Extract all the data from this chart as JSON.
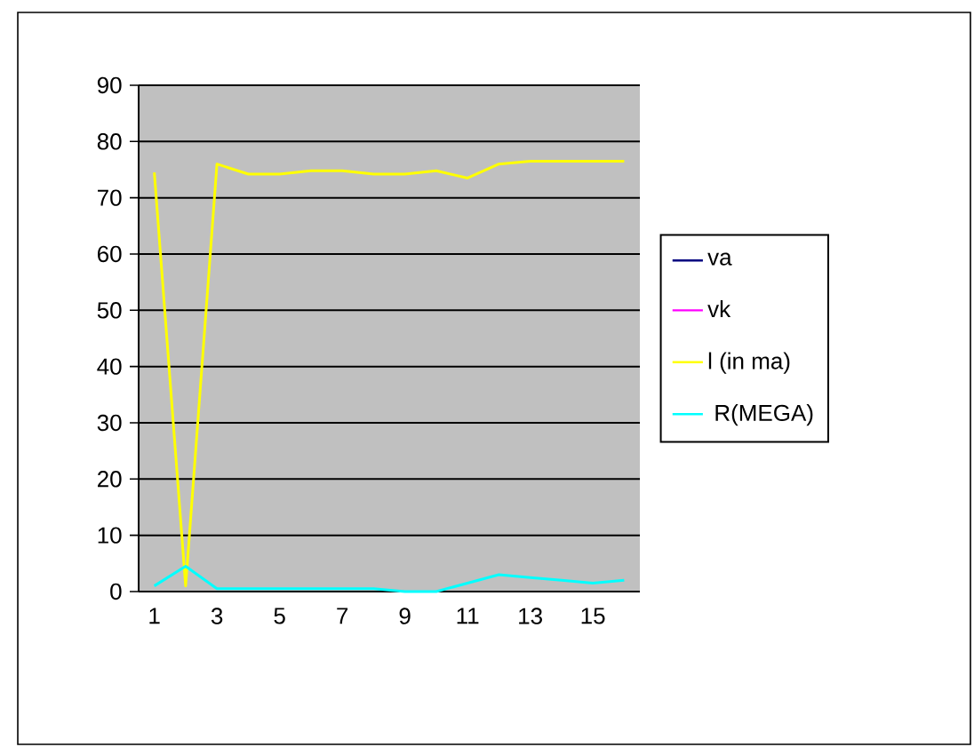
{
  "chart_data": {
    "type": "line",
    "categories": [
      "1",
      null,
      "3",
      null,
      "5",
      null,
      "7",
      null,
      "9",
      null,
      "11",
      null,
      "13",
      null,
      "15",
      null
    ],
    "series": [
      {
        "name": "va",
        "color": "#000080",
        "values": [
          null,
          null,
          null,
          null,
          null,
          null,
          null,
          null,
          null,
          null,
          null,
          null,
          null,
          null,
          null,
          null
        ]
      },
      {
        "name": "vk",
        "color": "#ff00ff",
        "values": [
          null,
          null,
          null,
          null,
          null,
          null,
          null,
          null,
          null,
          null,
          null,
          null,
          null,
          null,
          null,
          null
        ]
      },
      {
        "name": "l (in ma)",
        "color": "#ffff00",
        "values": [
          74.5,
          1,
          76,
          74.2,
          74.2,
          74.8,
          74.8,
          74.2,
          74.2,
          74.8,
          73.5,
          76,
          76.5,
          76.5,
          76.5,
          76.5
        ]
      },
      {
        "name": " R(MEGA)",
        "color": "#00ffff",
        "values": [
          1,
          4.5,
          0.5,
          0.5,
          0.5,
          0.5,
          0.5,
          0.5,
          0,
          0,
          1.5,
          3,
          2.5,
          2,
          1.5,
          2
        ]
      }
    ],
    "ylim": [
      0,
      90
    ],
    "yticks": [
      0,
      10,
      20,
      30,
      40,
      50,
      60,
      70,
      80,
      90
    ],
    "grid": "y",
    "legend": "right",
    "marker": "none",
    "line_style": "solid"
  }
}
